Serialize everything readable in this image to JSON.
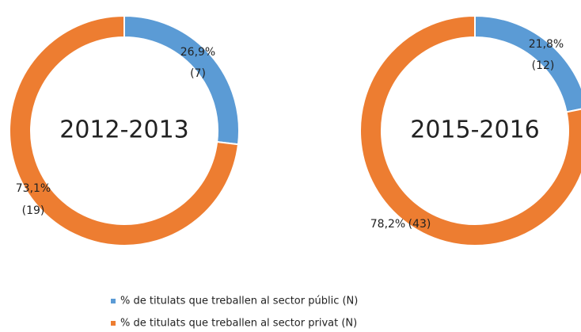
{
  "chart_data": [
    {
      "type": "donut",
      "title": "2012-2013",
      "categories": [
        "% de titulats que treballen al sector públic (N)",
        "% de titulats que treballen al sector privat (N)"
      ],
      "values": [
        26.9,
        73.1
      ],
      "value_labels": [
        "26,9%",
        "73,1%"
      ],
      "counts": [
        7,
        19
      ],
      "count_labels": [
        "(7)",
        "(19)"
      ],
      "colors": [
        "#5b9bd5",
        "#ed7d31"
      ]
    },
    {
      "type": "donut",
      "title": "2015-2016",
      "values": [
        21.8,
        78.2
      ],
      "value_labels": [
        "21,8%",
        "78,2%"
      ],
      "counts": [
        12,
        43
      ],
      "count_labels": [
        "(12)",
        "(43)"
      ],
      "colors": [
        "#5b9bd5",
        "#ed7d31"
      ]
    }
  ]
}
